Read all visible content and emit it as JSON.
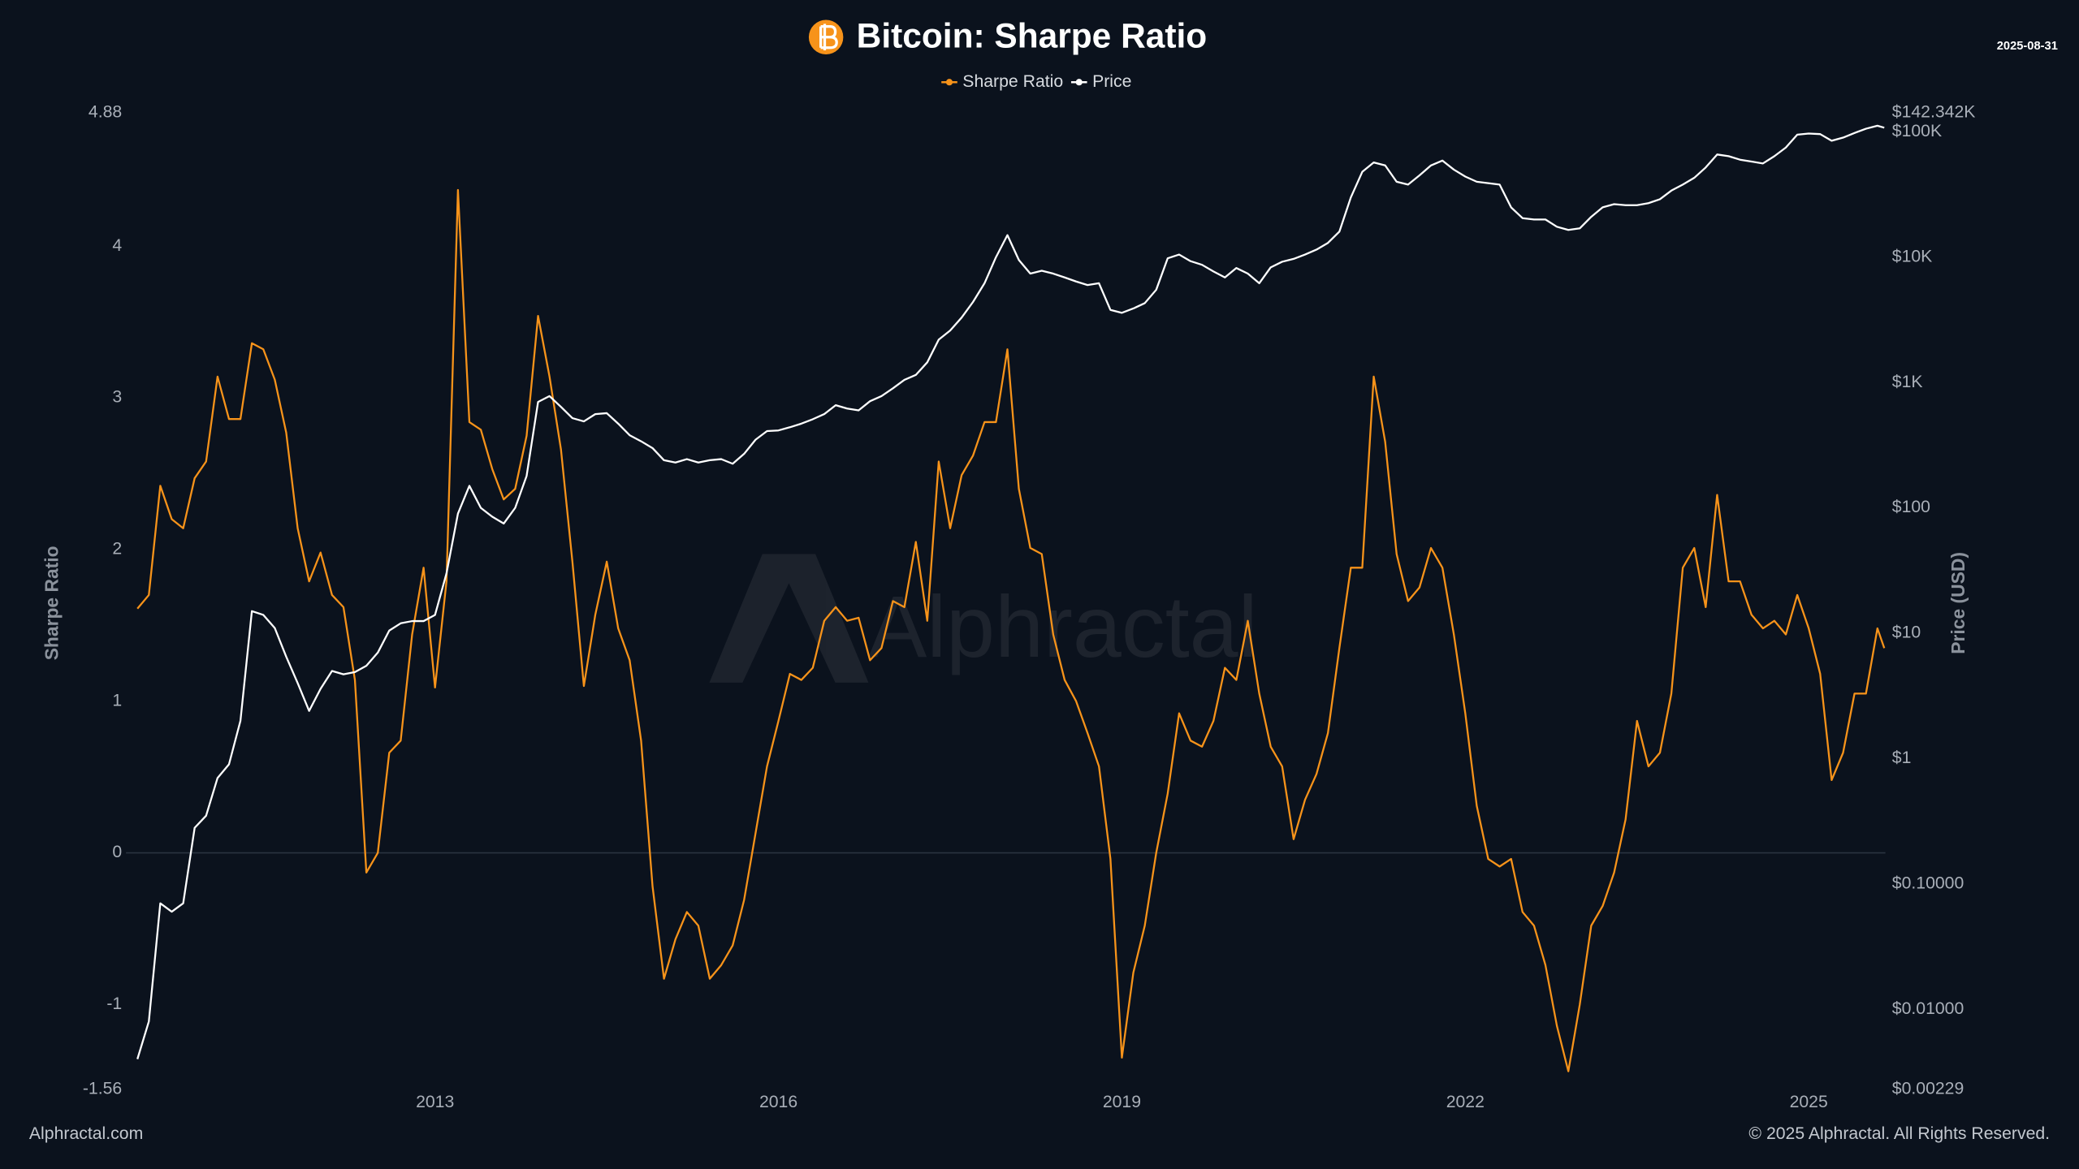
{
  "chart_data": {
    "type": "line",
    "title": "Bitcoin: Sharpe Ratio",
    "date": "2025-08-31",
    "watermark": "Alphractal",
    "footer_left": "Alphractal.com",
    "footer_right": "© 2025 Alphractal. All Rights Reserved.",
    "ylabel": "Sharpe Ratio",
    "y2label": "Price (USD)",
    "y2log": true,
    "grid": false,
    "zero_line": true,
    "legend": "top",
    "xlim": [
      2010.3,
      2025.67
    ],
    "xticks": [
      2013,
      2016,
      2019,
      2022,
      2025
    ],
    "ylim": [
      -1.56,
      4.88
    ],
    "yticks": [
      -1.56,
      -1,
      0,
      1,
      2,
      3,
      4,
      4.88
    ],
    "y2lim": [
      0.00229,
      142342
    ],
    "y2ticks": [
      {
        "value": 0.00229,
        "label": "$0.00229"
      },
      {
        "value": 0.01,
        "label": "$0.01000"
      },
      {
        "value": 0.1,
        "label": "$0.10000"
      },
      {
        "value": 1,
        "label": "$1"
      },
      {
        "value": 10,
        "label": "$10"
      },
      {
        "value": 100,
        "label": "$100"
      },
      {
        "value": 1000,
        "label": "$1K"
      },
      {
        "value": 10000,
        "label": "$10K"
      },
      {
        "value": 100000,
        "label": "$100K"
      },
      {
        "value": 142342,
        "label": "$142.342K"
      }
    ],
    "x": [
      2010.4,
      2010.5,
      2010.6,
      2010.7,
      2010.8,
      2010.9,
      2011.0,
      2011.1,
      2011.2,
      2011.3,
      2011.4,
      2011.5,
      2011.6,
      2011.7,
      2011.8,
      2011.9,
      2012.0,
      2012.1,
      2012.2,
      2012.3,
      2012.4,
      2012.5,
      2012.6,
      2012.7,
      2012.8,
      2012.9,
      2013.0,
      2013.1,
      2013.2,
      2013.3,
      2013.4,
      2013.5,
      2013.6,
      2013.7,
      2013.8,
      2013.9,
      2014.0,
      2014.1,
      2014.2,
      2014.3,
      2014.4,
      2014.5,
      2014.6,
      2014.7,
      2014.8,
      2014.9,
      2015.0,
      2015.1,
      2015.2,
      2015.3,
      2015.4,
      2015.5,
      2015.6,
      2015.7,
      2015.8,
      2015.9,
      2016.0,
      2016.1,
      2016.2,
      2016.3,
      2016.4,
      2016.5,
      2016.6,
      2016.7,
      2016.8,
      2016.9,
      2017.0,
      2017.1,
      2017.2,
      2017.3,
      2017.4,
      2017.5,
      2017.6,
      2017.7,
      2017.8,
      2017.9,
      2018.0,
      2018.1,
      2018.2,
      2018.3,
      2018.4,
      2018.5,
      2018.6,
      2018.7,
      2018.8,
      2018.9,
      2019.0,
      2019.1,
      2019.2,
      2019.3,
      2019.4,
      2019.5,
      2019.6,
      2019.7,
      2019.8,
      2019.9,
      2020.0,
      2020.1,
      2020.2,
      2020.3,
      2020.4,
      2020.5,
      2020.6,
      2020.7,
      2020.8,
      2020.9,
      2021.0,
      2021.1,
      2021.2,
      2021.3,
      2021.4,
      2021.5,
      2021.6,
      2021.7,
      2021.8,
      2021.9,
      2022.0,
      2022.1,
      2022.2,
      2022.3,
      2022.4,
      2022.5,
      2022.6,
      2022.7,
      2022.8,
      2022.9,
      2023.0,
      2023.1,
      2023.2,
      2023.3,
      2023.4,
      2023.5,
      2023.6,
      2023.7,
      2023.8,
      2023.9,
      2024.0,
      2024.1,
      2024.2,
      2024.3,
      2024.4,
      2024.5,
      2024.6,
      2024.7,
      2024.8,
      2024.9,
      2025.0,
      2025.1,
      2025.2,
      2025.3,
      2025.4,
      2025.5,
      2025.6,
      2025.66
    ],
    "series": [
      {
        "name": "Sharpe Ratio",
        "color": "#f7931a",
        "axis": "y",
        "values": [
          1.61,
          1.7,
          2.42,
          2.2,
          2.14,
          2.47,
          2.58,
          3.14,
          2.86,
          2.86,
          3.36,
          3.32,
          3.12,
          2.77,
          2.14,
          1.79,
          1.98,
          1.7,
          1.62,
          1.14,
          -0.13,
          0,
          0.66,
          0.74,
          1.44,
          1.88,
          1.09,
          1.79,
          4.37,
          2.84,
          2.79,
          2.53,
          2.33,
          2.4,
          2.75,
          3.54,
          3.14,
          2.66,
          1.92,
          1.1,
          1.57,
          1.92,
          1.48,
          1.27,
          0.74,
          -0.22,
          -0.83,
          -0.57,
          -0.39,
          -0.48,
          -0.83,
          -0.74,
          -0.61,
          -0.31,
          0.13,
          0.57,
          0.87,
          1.18,
          1.14,
          1.22,
          1.53,
          1.62,
          1.53,
          1.55,
          1.27,
          1.35,
          1.66,
          1.62,
          2.05,
          1.53,
          2.58,
          2.14,
          2.49,
          2.62,
          2.84,
          2.84,
          3.32,
          2.4,
          2.01,
          1.97,
          1.44,
          1.14,
          1.0,
          0.79,
          0.57,
          -0.04,
          -1.35,
          -0.79,
          -0.48,
          0,
          0.39,
          0.92,
          0.74,
          0.7,
          0.87,
          1.22,
          1.14,
          1.53,
          1.05,
          0.7,
          0.57,
          0.09,
          0.35,
          0.52,
          0.79,
          1.35,
          1.88,
          1.88,
          3.14,
          2.71,
          1.97,
          1.66,
          1.75,
          2.01,
          1.88,
          1.44,
          0.92,
          0.31,
          -0.04,
          -0.09,
          -0.04,
          -0.39,
          -0.48,
          -0.74,
          -1.14,
          -1.44,
          -1.0,
          -0.48,
          -0.35,
          -0.13,
          0.22,
          0.87,
          0.57,
          0.66,
          1.05,
          1.88,
          2.01,
          1.62,
          2.36,
          1.79,
          1.79,
          1.57,
          1.48,
          1.53,
          1.44,
          1.7,
          1.48,
          1.18,
          0.48,
          0.66,
          1.05,
          1.05,
          1.48,
          1.35
        ]
      },
      {
        "name": "Price",
        "color": "#ffffff",
        "axis": "y2",
        "values": [
          0.004,
          0.008,
          0.07,
          0.06,
          0.07,
          0.28,
          0.35,
          0.7,
          0.9,
          2.0,
          15,
          14,
          11,
          6.5,
          4.0,
          2.4,
          3.6,
          5.0,
          4.7,
          4.9,
          5.5,
          7.0,
          10.5,
          12,
          12.5,
          12.5,
          14,
          30,
          90,
          150,
          100,
          85,
          75,
          100,
          180,
          700,
          780,
          640,
          520,
          490,
          560,
          570,
          470,
          380,
          340,
          300,
          240,
          230,
          245,
          230,
          240,
          245,
          225,
          270,
          350,
          410,
          415,
          440,
          470,
          510,
          560,
          660,
          620,
          600,
          710,
          780,
          900,
          1050,
          1150,
          1450,
          2200,
          2600,
          3300,
          4400,
          6200,
          10000,
          15000,
          9500,
          7400,
          7800,
          7400,
          6900,
          6400,
          6000,
          6200,
          3800,
          3600,
          3900,
          4300,
          5500,
          9800,
          10500,
          9300,
          8700,
          7700,
          6900,
          8200,
          7400,
          6200,
          8300,
          9200,
          9700,
          10500,
          11500,
          13000,
          16000,
          30000,
          48000,
          57000,
          54000,
          40000,
          38000,
          45000,
          54000,
          59000,
          50000,
          44000,
          40000,
          39000,
          38000,
          25000,
          20500,
          20000,
          20000,
          17500,
          16500,
          17000,
          21000,
          25000,
          26500,
          26000,
          26000,
          27000,
          29000,
          34000,
          38000,
          43000,
          52000,
          66000,
          64000,
          60000,
          58000,
          56000,
          64000,
          75000,
          95000,
          97000,
          96000,
          85000,
          90000,
          98000,
          106000,
          112000,
          108000
        ]
      }
    ]
  }
}
